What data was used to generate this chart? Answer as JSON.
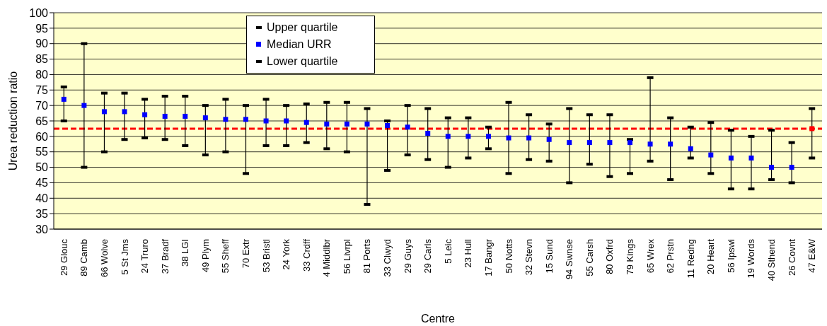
{
  "chart_data": {
    "type": "scatter",
    "xlabel": "Centre",
    "ylabel": "Urea reduction ratio",
    "categories": [
      "29 Glouc",
      "89 Camb",
      "66 Wolve",
      "5 St Jms",
      "24 Truro",
      "37 Bradf",
      "38 LGI",
      "49 Plym",
      "55 Sheff",
      "70 Extr",
      "53 Bristl",
      "24 York",
      "33 Crdff",
      "4 Middlbr",
      "56 Livrpl",
      "81 Ports",
      "33 Clwyd",
      "29 Guys",
      "29 Carls",
      "5 Leic",
      "23 Hull",
      "17 Bangr",
      "50 Notts",
      "32 Stevn",
      "15 Sund",
      "94 Swnse",
      "55 Carsh",
      "80 Oxfrd",
      "79 Kings",
      "65 Wrex",
      "62 Prstn",
      "11 Redng",
      "20 Heart",
      "56 Ipswi",
      "19 Words",
      "40 Sthend",
      "26 Covnt",
      "47 E&W"
    ],
    "series": [
      {
        "name": "Upper quartile",
        "color": "#000000",
        "values": [
          76,
          90,
          74,
          74,
          72,
          73,
          73,
          70,
          72,
          70,
          72,
          70,
          70.5,
          71,
          71,
          69,
          65,
          70,
          69,
          66,
          66,
          63,
          71,
          67,
          64,
          69,
          67,
          67,
          59,
          79,
          66,
          63,
          64.5,
          62,
          60,
          62,
          58,
          69
        ]
      },
      {
        "name": "Median URR",
        "color": "#0000ff",
        "colors": [
          "#0000ff",
          "#0000ff",
          "#0000ff",
          "#0000ff",
          "#0000ff",
          "#0000ff",
          "#0000ff",
          "#0000ff",
          "#0000ff",
          "#0000ff",
          "#0000ff",
          "#0000ff",
          "#0000ff",
          "#0000ff",
          "#0000ff",
          "#0000ff",
          "#0000ff",
          "#0000ff",
          "#0000ff",
          "#0000ff",
          "#0000ff",
          "#0000ff",
          "#0000ff",
          "#0000ff",
          "#0000ff",
          "#0000ff",
          "#0000ff",
          "#0000ff",
          "#0000ff",
          "#0000ff",
          "#0000ff",
          "#0000ff",
          "#0000ff",
          "#0000ff",
          "#0000ff",
          "#0000ff",
          "#0000ff",
          "#ff0000"
        ],
        "values": [
          72,
          70,
          68,
          68,
          67,
          66.5,
          66.5,
          66,
          65.5,
          65.5,
          65,
          65,
          64.5,
          64,
          64,
          64,
          63.5,
          63,
          61,
          60,
          60,
          60,
          59.5,
          59.5,
          59,
          58,
          58,
          58,
          58,
          57.5,
          57.5,
          56,
          54,
          53,
          53,
          50,
          50,
          62.5
        ],
        "marker": "square"
      },
      {
        "name": "Lower quartile",
        "color": "#000000",
        "values": [
          65,
          50,
          55,
          59,
          59.5,
          59,
          57,
          54,
          55,
          48,
          57,
          57,
          58,
          56,
          55,
          38,
          49,
          54,
          52.5,
          50,
          53,
          56,
          48,
          52.5,
          52,
          45,
          51,
          47,
          48,
          52,
          46,
          53,
          48,
          43,
          43,
          46,
          45,
          53
        ]
      }
    ],
    "ref_lines": [
      {
        "axis": "y",
        "value": 62.5,
        "color": "#ff0000",
        "line_style": "dashed"
      }
    ],
    "ylim": [
      30,
      100
    ],
    "yticks": [
      30,
      35,
      40,
      45,
      50,
      55,
      60,
      65,
      70,
      75,
      80,
      85,
      90,
      95,
      100
    ],
    "grid": "y",
    "legend": "top",
    "marker": "square"
  }
}
